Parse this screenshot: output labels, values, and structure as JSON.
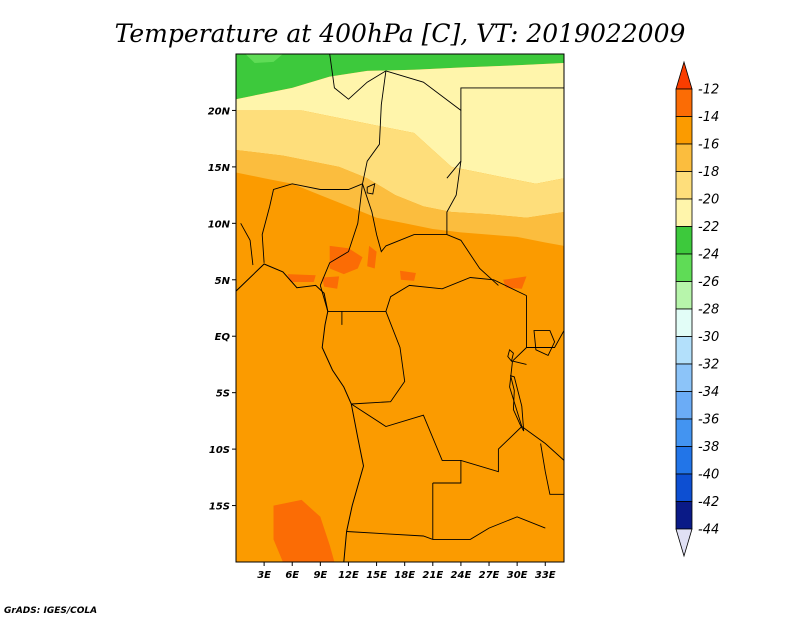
{
  "title": "Temperature at 400hPa [C], VT: 2019022009",
  "credit": "GrADS: IGES/COLA",
  "map": {
    "lon_range": [
      0,
      35
    ],
    "lat_range": [
      -20,
      25
    ],
    "lon_ticks": [
      {
        "value": 3,
        "label": "3E"
      },
      {
        "value": 6,
        "label": "6E"
      },
      {
        "value": 9,
        "label": "9E"
      },
      {
        "value": 12,
        "label": "12E"
      },
      {
        "value": 15,
        "label": "15E"
      },
      {
        "value": 18,
        "label": "18E"
      },
      {
        "value": 21,
        "label": "21E"
      },
      {
        "value": 24,
        "label": "24E"
      },
      {
        "value": 27,
        "label": "27E"
      },
      {
        "value": 30,
        "label": "30E"
      },
      {
        "value": 33,
        "label": "33E"
      }
    ],
    "lat_ticks": [
      {
        "value": 20,
        "label": "20N"
      },
      {
        "value": 15,
        "label": "15N"
      },
      {
        "value": 10,
        "label": "10N"
      },
      {
        "value": 5,
        "label": "5N"
      },
      {
        "value": 0,
        "label": "EQ"
      },
      {
        "value": -5,
        "label": "5S"
      },
      {
        "value": -10,
        "label": "10S"
      },
      {
        "value": -15,
        "label": "15S"
      }
    ],
    "background_color": "#fb9b00",
    "regions": [
      {
        "name": "north-green-band",
        "color": "#3dc93c",
        "lonlat": [
          [
            0,
            25
          ],
          [
            35,
            25
          ],
          [
            35,
            24.2
          ],
          [
            30,
            24
          ],
          [
            24,
            23.8
          ],
          [
            19,
            23.6
          ],
          [
            14,
            23.5
          ],
          [
            10,
            23
          ],
          [
            6,
            22
          ],
          [
            3,
            21.5
          ],
          [
            0,
            21
          ]
        ]
      },
      {
        "name": "north-light-green-patch",
        "color": "#5fdc56",
        "lonlat": [
          [
            1,
            25
          ],
          [
            5,
            25
          ],
          [
            4,
            24.3
          ],
          [
            2,
            24.2
          ]
        ]
      },
      {
        "name": "pale-yellow-north",
        "color": "#fff5ab",
        "lonlat": [
          [
            0,
            21
          ],
          [
            3,
            21.5
          ],
          [
            6,
            22
          ],
          [
            10,
            23
          ],
          [
            14,
            23.5
          ],
          [
            19,
            23.6
          ],
          [
            24,
            23.8
          ],
          [
            30,
            24
          ],
          [
            35,
            24.2
          ],
          [
            35,
            14
          ],
          [
            32,
            13.5
          ],
          [
            29,
            14
          ],
          [
            26,
            14.5
          ],
          [
            23,
            15
          ],
          [
            21,
            16.5
          ],
          [
            19,
            18
          ],
          [
            16,
            18.5
          ],
          [
            13,
            19
          ],
          [
            10,
            19.5
          ],
          [
            7,
            20
          ],
          [
            4,
            20
          ],
          [
            0,
            20
          ]
        ]
      },
      {
        "name": "light-yellow-band",
        "color": "#fede7b",
        "lonlat": [
          [
            0,
            20
          ],
          [
            4,
            20
          ],
          [
            7,
            20
          ],
          [
            10,
            19.5
          ],
          [
            13,
            19
          ],
          [
            16,
            18.5
          ],
          [
            19,
            18
          ],
          [
            21,
            16.5
          ],
          [
            23,
            15
          ],
          [
            26,
            14.5
          ],
          [
            29,
            14
          ],
          [
            32,
            13.5
          ],
          [
            35,
            14
          ],
          [
            35,
            11
          ],
          [
            31,
            10.5
          ],
          [
            27,
            10.8
          ],
          [
            23,
            11
          ],
          [
            20,
            11.5
          ],
          [
            17,
            12.5
          ],
          [
            14,
            14
          ],
          [
            11,
            15
          ],
          [
            8,
            15.5
          ],
          [
            5,
            16
          ],
          [
            0,
            16.5
          ]
        ]
      },
      {
        "name": "light-orange-band",
        "color": "#fbbd3e",
        "lonlat": [
          [
            0,
            16.5
          ],
          [
            5,
            16
          ],
          [
            8,
            15.5
          ],
          [
            11,
            15
          ],
          [
            14,
            14
          ],
          [
            17,
            12.5
          ],
          [
            20,
            11.5
          ],
          [
            23,
            11
          ],
          [
            27,
            10.8
          ],
          [
            31,
            10.5
          ],
          [
            35,
            11
          ],
          [
            35,
            8
          ],
          [
            33,
            8.3
          ],
          [
            30,
            8.8
          ],
          [
            27,
            9
          ],
          [
            24,
            9.2
          ],
          [
            21,
            9.5
          ],
          [
            18,
            10
          ],
          [
            15,
            10.5
          ],
          [
            12,
            11.5
          ],
          [
            9,
            12.5
          ],
          [
            6,
            13.5
          ],
          [
            3,
            14
          ],
          [
            0,
            14.5
          ]
        ]
      },
      {
        "name": "red-orange-patch-nigeria",
        "color": "#fb6c05",
        "lonlat": [
          [
            10,
            8
          ],
          [
            12,
            7.8
          ],
          [
            13.5,
            7
          ],
          [
            13,
            6
          ],
          [
            11.5,
            5.5
          ],
          [
            10,
            6
          ]
        ]
      },
      {
        "name": "red-orange-patch-cameroon",
        "color": "#fb6c05",
        "lonlat": [
          [
            14.2,
            8
          ],
          [
            15,
            7.5
          ],
          [
            14.8,
            6
          ],
          [
            14,
            6.2
          ]
        ]
      },
      {
        "name": "red-orange-patch-cameroon-south",
        "color": "#fb6c05",
        "lonlat": [
          [
            9.2,
            5.2
          ],
          [
            11,
            5.3
          ],
          [
            10.8,
            4.2
          ],
          [
            9.4,
            4.4
          ]
        ]
      },
      {
        "name": "red-orange-patch-gulf",
        "color": "#fb6c05",
        "lonlat": [
          [
            5.5,
            5.5
          ],
          [
            8.5,
            5.4
          ],
          [
            8.3,
            4.8
          ],
          [
            5.8,
            4.8
          ]
        ]
      },
      {
        "name": "red-orange-patch-car",
        "color": "#fb6c05",
        "lonlat": [
          [
            17.5,
            5.8
          ],
          [
            19.2,
            5.6
          ],
          [
            19,
            4.9
          ],
          [
            17.6,
            5
          ]
        ]
      },
      {
        "name": "red-orange-patch-east",
        "color": "#fb6c05",
        "lonlat": [
          [
            28.5,
            5
          ],
          [
            31,
            5.3
          ],
          [
            30.5,
            4.2
          ],
          [
            28.8,
            4.3
          ]
        ]
      },
      {
        "name": "red-orange-patch-namibia",
        "color": "#fb6c05",
        "lonlat": [
          [
            4,
            -15
          ],
          [
            7,
            -14.5
          ],
          [
            9,
            -16
          ],
          [
            10,
            -18.5
          ],
          [
            10.5,
            -20
          ],
          [
            5,
            -20
          ],
          [
            4,
            -18
          ]
        ]
      }
    ],
    "borders": [
      [
        [
          10,
          25
        ],
        [
          10.5,
          22
        ],
        [
          12,
          21
        ],
        [
          14,
          22.5
        ],
        [
          16,
          23.5
        ]
      ],
      [
        [
          16,
          23.5
        ],
        [
          15.5,
          20.5
        ],
        [
          15.3,
          17
        ],
        [
          14,
          15.5
        ],
        [
          13.5,
          13.5
        ]
      ],
      [
        [
          16,
          23.5
        ],
        [
          20,
          22.5
        ],
        [
          24,
          20
        ],
        [
          24,
          15.5
        ],
        [
          22.5,
          14
        ]
      ],
      [
        [
          24,
          20
        ],
        [
          24,
          22
        ],
        [
          35,
          22
        ]
      ],
      [
        [
          24,
          15.5
        ],
        [
          23.5,
          12.5
        ],
        [
          22.5,
          11
        ],
        [
          22.5,
          9
        ]
      ],
      [
        [
          3.6,
          11.5
        ],
        [
          4,
          13
        ],
        [
          6,
          13.5
        ],
        [
          9,
          13
        ],
        [
          12,
          13
        ],
        [
          13.5,
          13.5
        ]
      ],
      [
        [
          13.5,
          13.5
        ],
        [
          14.5,
          11
        ],
        [
          15,
          9
        ],
        [
          15.5,
          7.5
        ],
        [
          16,
          8
        ],
        [
          19,
          9
        ],
        [
          22.5,
          9
        ]
      ],
      [
        [
          13.5,
          13.5
        ],
        [
          13,
          10
        ],
        [
          12,
          7.5
        ],
        [
          10,
          6.5
        ],
        [
          9,
          4.5
        ]
      ],
      [
        [
          9,
          4.5
        ],
        [
          9.8,
          2.2
        ],
        [
          11.3,
          2.2
        ],
        [
          11.3,
          1
        ]
      ],
      [
        [
          11.3,
          2.2
        ],
        [
          16,
          2.2
        ],
        [
          16.5,
          3.5
        ],
        [
          18.5,
          4.5
        ],
        [
          22,
          4.2
        ],
        [
          25,
          5.2
        ],
        [
          27.5,
          5
        ],
        [
          31,
          3.6
        ]
      ],
      [
        [
          3,
          6.5
        ],
        [
          2.8,
          9
        ],
        [
          3.6,
          11.5
        ]
      ],
      [
        [
          0.5,
          10
        ],
        [
          1.5,
          8.5
        ],
        [
          1.8,
          6.3
        ]
      ],
      [
        [
          22.5,
          9
        ],
        [
          24,
          8.5
        ],
        [
          26,
          6
        ],
        [
          28,
          4.5
        ]
      ],
      [
        [
          31,
          3.6
        ],
        [
          31,
          -1
        ],
        [
          29.5,
          -2.2
        ],
        [
          29.2,
          -4.5
        ],
        [
          30.5,
          -8
        ]
      ],
      [
        [
          16,
          2.2
        ],
        [
          17.5,
          -1
        ],
        [
          18,
          -4
        ],
        [
          16.5,
          -5.8
        ],
        [
          12.3,
          -6
        ]
      ],
      [
        [
          12.3,
          -6
        ],
        [
          16,
          -8
        ],
        [
          20,
          -7
        ],
        [
          22,
          -11
        ],
        [
          24,
          -11
        ],
        [
          28,
          -12
        ],
        [
          28,
          -10
        ],
        [
          30.5,
          -8
        ]
      ],
      [
        [
          11.8,
          -17.3
        ],
        [
          20,
          -17.7
        ],
        [
          21,
          -18
        ],
        [
          25,
          -18
        ],
        [
          27,
          -17
        ],
        [
          30,
          -16
        ],
        [
          33,
          -17
        ]
      ],
      [
        [
          21,
          -13
        ],
        [
          21,
          -18
        ]
      ],
      [
        [
          30.5,
          -8
        ],
        [
          33,
          -9.5
        ],
        [
          35,
          -11
        ]
      ],
      [
        [
          32.5,
          -9.5
        ],
        [
          33,
          -12
        ],
        [
          33.5,
          -14
        ],
        [
          35,
          -14
        ]
      ],
      [
        [
          31,
          -1
        ],
        [
          34,
          -1
        ],
        [
          35,
          0.5
        ]
      ],
      [
        [
          29.5,
          -2.2
        ],
        [
          31,
          -2.5
        ]
      ],
      [
        [
          24,
          -11
        ],
        [
          24,
          -13
        ],
        [
          21,
          -13
        ]
      ]
    ],
    "coast": [
      [
        [
          0,
          4
        ],
        [
          3,
          6.4
        ],
        [
          5,
          5.7
        ],
        [
          6.5,
          4.3
        ],
        [
          8.5,
          4.5
        ],
        [
          9.4,
          3.8
        ],
        [
          9.8,
          2.2
        ],
        [
          9.5,
          1
        ],
        [
          9.2,
          -1
        ],
        [
          10.3,
          -3
        ],
        [
          11.5,
          -4.5
        ],
        [
          12.3,
          -6
        ],
        [
          13,
          -9
        ],
        [
          13.6,
          -11.5
        ],
        [
          12.4,
          -15
        ],
        [
          11.8,
          -17.3
        ],
        [
          11.5,
          -20
        ]
      ]
    ],
    "lakes": [
      [
        [
          29.3,
          -3.5
        ],
        [
          29.7,
          -4.8
        ],
        [
          29.6,
          -6.5
        ],
        [
          30.3,
          -7.8
        ],
        [
          30.7,
          -8.4
        ],
        [
          30.5,
          -6.2
        ],
        [
          29.7,
          -3.6
        ]
      ],
      [
        [
          31.8,
          0.5
        ],
        [
          33.5,
          0.5
        ],
        [
          34,
          -0.5
        ],
        [
          33.3,
          -1.7
        ],
        [
          32,
          -1.2
        ]
      ],
      [
        [
          29.2,
          -1.2
        ],
        [
          29.6,
          -1.5
        ],
        [
          29.4,
          -2.2
        ],
        [
          29,
          -1.8
        ]
      ],
      [
        [
          14,
          13.2
        ],
        [
          14.8,
          13.5
        ],
        [
          14.6,
          12.6
        ],
        [
          14,
          12.7
        ]
      ]
    ]
  },
  "colorbar": {
    "levels": [
      "-12",
      "-14",
      "-16",
      "-18",
      "-20",
      "-22",
      "-24",
      "-26",
      "-28",
      "-30",
      "-32",
      "-34",
      "-36",
      "-38",
      "-40",
      "-42",
      "-44"
    ],
    "colors": [
      "#f93d00",
      "#fb6c05",
      "#fb9b00",
      "#fbbd3e",
      "#fede7b",
      "#fff5ab",
      "#3dc93c",
      "#5fdc56",
      "#b7f5ab",
      "#e2fdf7",
      "#b3e0fb",
      "#8cc4f9",
      "#6bacf6",
      "#4394f1",
      "#2275e8",
      "#0d4fd2",
      "#0a1a87",
      "#e0e0f4"
    ]
  }
}
